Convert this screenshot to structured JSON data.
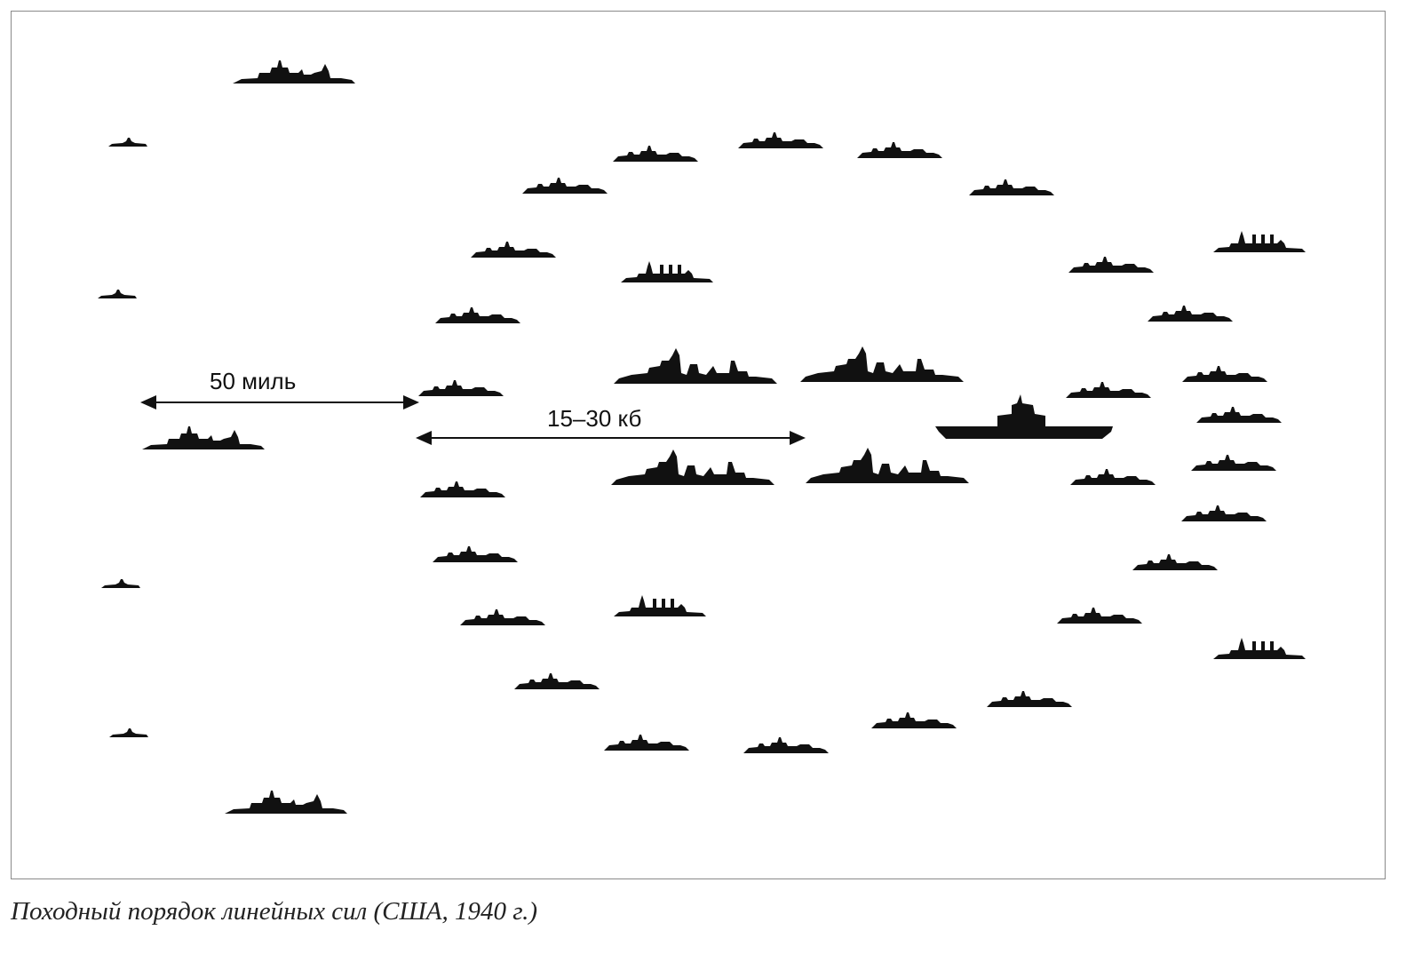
{
  "labels": {
    "dist_fleet": "50 миль",
    "dist_inner": "15–30 кб"
  },
  "caption": "Походный порядок линейных сил (США, 1940 г.)",
  "ink_color": "#111111"
}
